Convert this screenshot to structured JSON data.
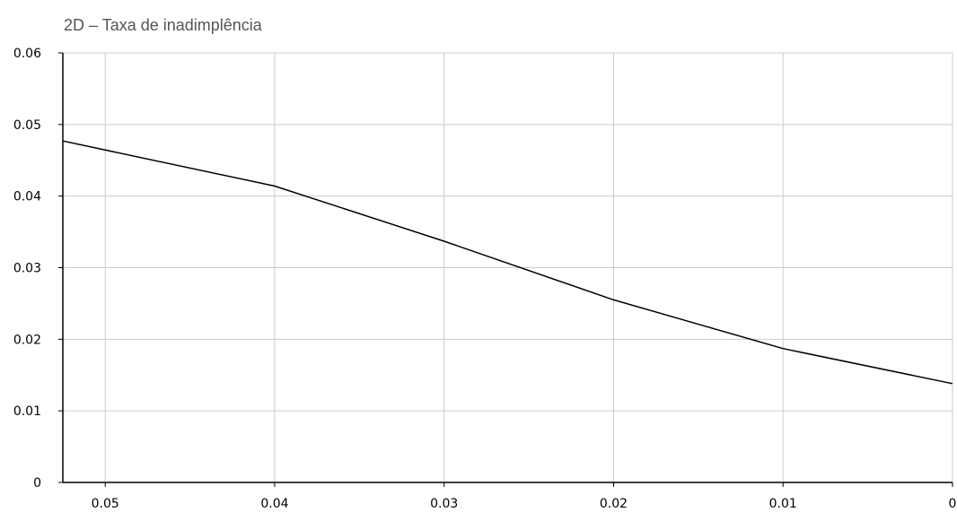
{
  "chart_data": {
    "type": "line",
    "title": "2D – Taxa de inadimplência",
    "xlim": [
      0.0525,
      0
    ],
    "ylim": [
      0,
      0.06
    ],
    "x_ticks": [
      "0.05",
      "0.04",
      "0.03",
      "0.02",
      "0.01",
      "0"
    ],
    "x_tick_values": [
      0.05,
      0.04,
      0.03,
      0.02,
      0.01,
      0
    ],
    "y_ticks": [
      "0",
      "0.01",
      "0.02",
      "0.03",
      "0.04",
      "0.05",
      "0.06"
    ],
    "y_tick_values": [
      0,
      0.01,
      0.02,
      0.03,
      0.04,
      0.05,
      0.06
    ],
    "grid": true,
    "series": [
      {
        "color": "#000000",
        "x": [
          0.0525,
          0.04,
          0.03,
          0.02,
          0.01,
          0
        ],
        "y": [
          0.0477,
          0.0414,
          0.0337,
          0.0255,
          0.0187,
          0.0138
        ]
      }
    ]
  }
}
